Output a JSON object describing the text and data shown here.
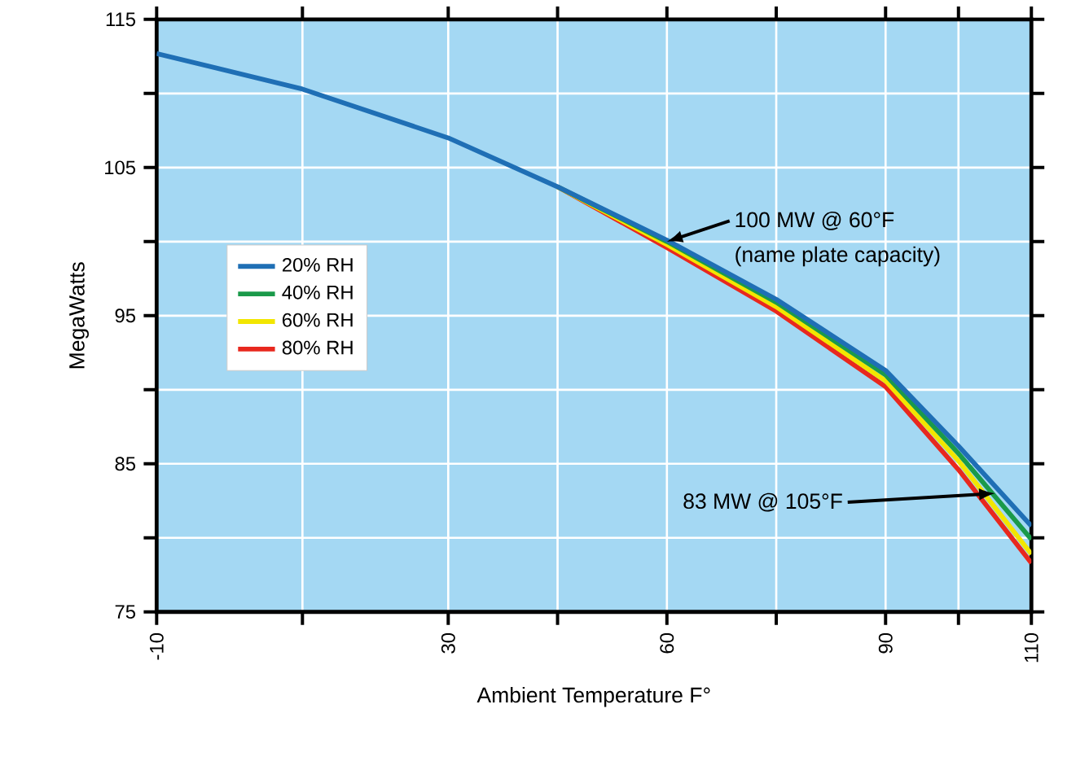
{
  "chart_data": {
    "type": "line",
    "xlabel": "Ambient Temperature F°",
    "ylabel": "MegaWatts",
    "x": [
      -10,
      10,
      30,
      45,
      60,
      75,
      90,
      100,
      110
    ],
    "series": [
      {
        "name": "20% RH",
        "color": "#1f6fb5",
        "values": [
          112.7,
          110.3,
          107.0,
          103.7,
          100.1,
          96.1,
          91.3,
          86.2,
          80.8
        ]
      },
      {
        "name": "40% RH",
        "color": "#1a9a4a",
        "values": [
          null,
          null,
          null,
          103.7,
          100.0,
          95.9,
          91.0,
          85.7,
          79.9
        ]
      },
      {
        "name": "60% RH",
        "color": "#f2e600",
        "values": [
          null,
          null,
          null,
          103.7,
          99.8,
          95.6,
          90.6,
          85.2,
          78.9
        ]
      },
      {
        "name": "80% RH",
        "color": "#e8281e",
        "values": [
          null,
          null,
          null,
          103.7,
          99.6,
          95.3,
          90.2,
          84.6,
          78.3
        ]
      }
    ],
    "xlim": [
      -10,
      110
    ],
    "xticks": [
      -10,
      {
        "value": 10,
        "label": null
      },
      30,
      {
        "value": 45,
        "label": null
      },
      60,
      {
        "value": 75,
        "label": null
      },
      90,
      {
        "value": 100,
        "label": null
      },
      110
    ],
    "ylim": [
      75,
      115
    ],
    "yticks": [
      75,
      {
        "value": 80,
        "label": null
      },
      85,
      {
        "value": 90,
        "label": null
      },
      95,
      {
        "value": 100,
        "label": null
      },
      105,
      {
        "value": 110,
        "label": null
      },
      115
    ],
    "grid": true,
    "legend": "left",
    "line_style": "solid",
    "marker": "none",
    "annotations": [
      {
        "text": "100 MW @ 60°F",
        "x": 60,
        "y": 100
      },
      "(name plate capacity)",
      {
        "text": "83 MW @ 105°F",
        "x": 105,
        "y": 83
      }
    ]
  }
}
